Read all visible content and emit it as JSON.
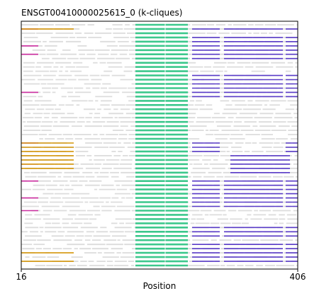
{
  "chart_data": {
    "type": "k-clique alignment track plot",
    "title": "ENSGT00410000025615_0 (k-cliques)",
    "xlabel": "Position",
    "xlim": [
      16,
      406
    ],
    "x_ticks": [
      "16",
      "406"
    ],
    "grid": false,
    "legend": "none",
    "colors": {
      "background_row": "#dcdcdc",
      "core_clique": "#3cc88c",
      "magenta_clique": "#cc2ea0",
      "orange_clique": "#d4960a",
      "purple_clique": "#5a3cc8",
      "frame": "#000000"
    },
    "row_count": 58,
    "core_block": {
      "start": 177,
      "end": 251,
      "inner_boundary": 219
    },
    "segments": {
      "magenta": {
        "rows": [
          1,
          5,
          7,
          16,
          28,
          33,
          37,
          41,
          44
        ],
        "start": 16,
        "end": 40
      },
      "orange": {
        "rows": [
          1,
          28,
          29,
          30,
          31,
          32,
          33,
          34,
          54,
          56
        ],
        "start": 16,
        "end": 90
      },
      "purple_left": {
        "rows": [
          1,
          3,
          4,
          5,
          6,
          7,
          8,
          12,
          13,
          14,
          15,
          16,
          17,
          28,
          29,
          30,
          37,
          38,
          39,
          40,
          41,
          42,
          43,
          48,
          49,
          50,
          52,
          53,
          54,
          55,
          56
        ],
        "start": 257,
        "end": 296
      },
      "purple_mid": {
        "rows": [
          1,
          3,
          4,
          5,
          6,
          7,
          8,
          12,
          13,
          14,
          15,
          16,
          17,
          37,
          38,
          39,
          40,
          41,
          42,
          43,
          48,
          49,
          50,
          52,
          53,
          54,
          55,
          56
        ],
        "start": 302,
        "end": 385
      },
      "purple_tail": {
        "rows": [
          1,
          3,
          4,
          5,
          6,
          7,
          8,
          12,
          13,
          14,
          15,
          16,
          17,
          28,
          29,
          30,
          37,
          38,
          39,
          40,
          41,
          42,
          43,
          48,
          49,
          50,
          52,
          53,
          54,
          55,
          56
        ],
        "start": 389,
        "end": 406
      },
      "purple_block": {
        "rows": [
          31,
          32,
          33,
          34,
          35
        ],
        "start": 311,
        "end": 395
      }
    }
  }
}
